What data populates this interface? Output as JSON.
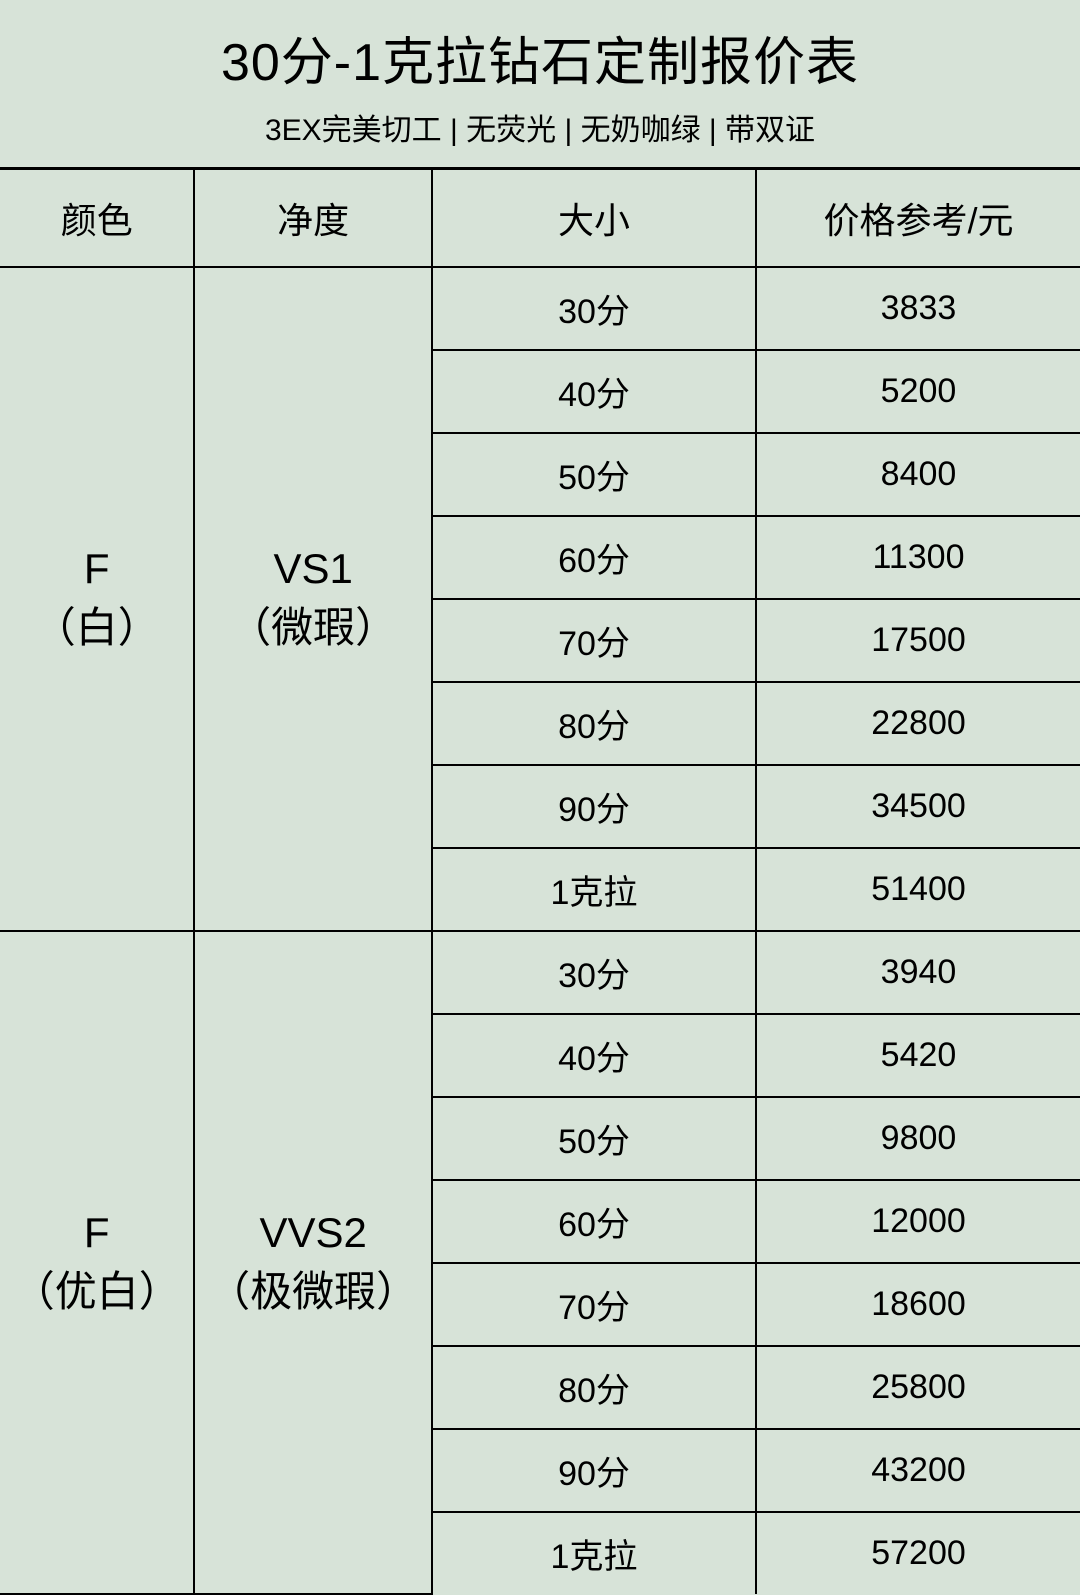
{
  "header": {
    "title": "30分-1克拉钻石定制报价表",
    "subtitle": "3EX完美切工 | 无荧光 | 无奶咖绿 | 带双证"
  },
  "table": {
    "columns": [
      "颜色",
      "净度",
      "大小",
      "价格参考/元"
    ],
    "column_widths": [
      "18%",
      "22%",
      "30%",
      "30%"
    ],
    "groups": [
      {
        "color_line1": "F",
        "color_line2": "（白）",
        "clarity_line1": "VS1",
        "clarity_line2": "（微瑕）",
        "rows": [
          {
            "size": "30分",
            "price": "3833"
          },
          {
            "size": "40分",
            "price": "5200"
          },
          {
            "size": "50分",
            "price": "8400"
          },
          {
            "size": "60分",
            "price": "11300"
          },
          {
            "size": "70分",
            "price": "17500"
          },
          {
            "size": "80分",
            "price": "22800"
          },
          {
            "size": "90分",
            "price": "34500"
          },
          {
            "size": "1克拉",
            "price": "51400"
          }
        ]
      },
      {
        "color_line1": "F",
        "color_line2": "（优白）",
        "clarity_line1": "VVS2",
        "clarity_line2": "（极微瑕）",
        "rows": [
          {
            "size": "30分",
            "price": "3940"
          },
          {
            "size": "40分",
            "price": "5420"
          },
          {
            "size": "50分",
            "price": "9800"
          },
          {
            "size": "60分",
            "price": "12000"
          },
          {
            "size": "70分",
            "price": "18600"
          },
          {
            "size": "80分",
            "price": "25800"
          },
          {
            "size": "90分",
            "price": "43200"
          },
          {
            "size": "1克拉",
            "price": "57200"
          }
        ]
      }
    ]
  },
  "styling": {
    "background_color": "#d7e3d8",
    "border_color": "#000000",
    "text_color": "#000000",
    "title_fontsize": 52,
    "subtitle_fontsize": 30,
    "header_fontsize": 36,
    "cell_fontsize": 34,
    "merged_cell_fontsize": 42
  }
}
